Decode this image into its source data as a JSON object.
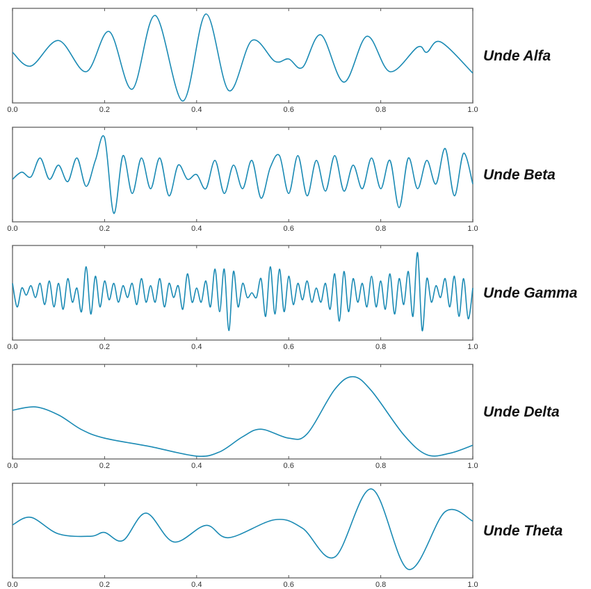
{
  "chart_data": [
    {
      "type": "line",
      "title": "Unde Alfa",
      "color": "#1a8ab4",
      "ylim": [
        -1,
        1
      ],
      "xlim": [
        0,
        1
      ],
      "xticks": [
        {
          "value": 0,
          "label": "0.0"
        },
        0.2,
        0.4,
        0.6,
        0.8,
        {
          "value": 1,
          "label": "1.0"
        }
      ],
      "x": [
        0,
        0.04,
        0.1,
        0.16,
        0.21,
        0.26,
        0.31,
        0.37,
        0.42,
        0.47,
        0.52,
        0.57,
        0.6,
        0.63,
        0.67,
        0.72,
        0.77,
        0.82,
        0.88,
        0.9,
        0.93,
        1.0
      ],
      "values": [
        0.07,
        -0.22,
        0.32,
        -0.34,
        0.51,
        -0.71,
        0.85,
        -0.96,
        0.88,
        -0.74,
        0.32,
        -0.12,
        -0.07,
        -0.25,
        0.44,
        -0.56,
        0.41,
        -0.34,
        0.18,
        0.07,
        0.29,
        -0.37
      ]
    },
    {
      "type": "line",
      "title": "Unde Beta",
      "color": "#1a8ab4",
      "ylim": [
        -1,
        1
      ],
      "xlim": [
        0,
        1
      ],
      "xticks": [
        {
          "value": 0,
          "label": "0.0"
        },
        0.2,
        0.4,
        0.6,
        0.8,
        {
          "value": 1,
          "label": "1.0"
        }
      ],
      "x": [
        0,
        0.02,
        0.04,
        0.06,
        0.08,
        0.1,
        0.12,
        0.14,
        0.16,
        0.18,
        0.2,
        0.22,
        0.24,
        0.26,
        0.28,
        0.3,
        0.32,
        0.34,
        0.36,
        0.38,
        0.4,
        0.42,
        0.44,
        0.46,
        0.48,
        0.5,
        0.52,
        0.54,
        0.56,
        0.58,
        0.6,
        0.62,
        0.64,
        0.66,
        0.68,
        0.7,
        0.72,
        0.74,
        0.76,
        0.78,
        0.8,
        0.82,
        0.84,
        0.86,
        0.88,
        0.9,
        0.92,
        0.94,
        0.96,
        0.98,
        1.0
      ],
      "values": [
        -0.1,
        0.05,
        -0.05,
        0.35,
        -0.1,
        0.2,
        -0.15,
        0.35,
        -0.25,
        0.3,
        0.78,
        -0.82,
        0.4,
        -0.4,
        0.35,
        -0.3,
        0.35,
        -0.45,
        0.2,
        -0.1,
        0.0,
        -0.3,
        0.3,
        -0.4,
        0.2,
        -0.3,
        0.3,
        -0.5,
        0.15,
        0.4,
        -0.4,
        0.4,
        -0.45,
        0.3,
        -0.35,
        0.4,
        -0.35,
        0.2,
        -0.3,
        0.35,
        -0.3,
        0.3,
        -0.7,
        0.35,
        -0.3,
        0.3,
        -0.2,
        0.55,
        -0.45,
        0.45,
        -0.2
      ]
    },
    {
      "type": "line",
      "title": "Unde Gamma",
      "color": "#1a8ab4",
      "ylim": [
        -1,
        1
      ],
      "xlim": [
        0,
        1
      ],
      "xticks": [
        {
          "value": 0,
          "label": "0.0"
        },
        0.2,
        0.4,
        0.6,
        0.8,
        {
          "value": 1,
          "label": "1.0"
        }
      ],
      "x": [
        0,
        0.01,
        0.02,
        0.03,
        0.04,
        0.05,
        0.06,
        0.07,
        0.08,
        0.09,
        0.1,
        0.11,
        0.12,
        0.13,
        0.14,
        0.15,
        0.16,
        0.17,
        0.18,
        0.19,
        0.2,
        0.21,
        0.22,
        0.23,
        0.24,
        0.25,
        0.26,
        0.27,
        0.28,
        0.29,
        0.3,
        0.31,
        0.32,
        0.33,
        0.34,
        0.35,
        0.36,
        0.37,
        0.38,
        0.39,
        0.4,
        0.41,
        0.42,
        0.43,
        0.44,
        0.45,
        0.46,
        0.47,
        0.48,
        0.49,
        0.5,
        0.51,
        0.52,
        0.53,
        0.54,
        0.55,
        0.56,
        0.57,
        0.58,
        0.59,
        0.6,
        0.61,
        0.62,
        0.63,
        0.64,
        0.65,
        0.66,
        0.67,
        0.68,
        0.69,
        0.7,
        0.71,
        0.72,
        0.73,
        0.74,
        0.75,
        0.76,
        0.77,
        0.78,
        0.79,
        0.8,
        0.81,
        0.82,
        0.83,
        0.84,
        0.85,
        0.86,
        0.87,
        0.88,
        0.89,
        0.9,
        0.91,
        0.92,
        0.93,
        0.94,
        0.95,
        0.96,
        0.97,
        0.98,
        0.99,
        1.0
      ],
      "values": [
        0.2,
        -0.3,
        0.1,
        -0.05,
        0.15,
        -0.1,
        0.2,
        -0.25,
        0.25,
        -0.3,
        0.2,
        -0.35,
        0.3,
        -0.2,
        0.1,
        -0.4,
        0.55,
        -0.45,
        0.35,
        -0.3,
        0.25,
        -0.15,
        0.2,
        -0.2,
        0.15,
        -0.1,
        0.2,
        -0.25,
        0.3,
        -0.2,
        0.15,
        -0.2,
        0.3,
        -0.3,
        0.2,
        -0.1,
        0.15,
        -0.35,
        0.4,
        -0.2,
        0.1,
        -0.2,
        0.25,
        -0.3,
        0.5,
        -0.4,
        0.5,
        -0.8,
        0.45,
        -0.3,
        0.2,
        -0.1,
        0.0,
        -0.1,
        0.3,
        -0.5,
        0.55,
        -0.45,
        0.5,
        -0.4,
        0.35,
        -0.25,
        0.2,
        -0.15,
        0.25,
        -0.2,
        0.1,
        -0.2,
        0.2,
        -0.35,
        0.4,
        -0.6,
        0.45,
        -0.4,
        0.3,
        -0.2,
        0.2,
        -0.3,
        0.35,
        -0.3,
        0.25,
        -0.35,
        0.4,
        -0.45,
        0.3,
        -0.25,
        0.45,
        -0.5,
        0.85,
        -0.8,
        0.3,
        -0.2,
        0.15,
        -0.1,
        0.3,
        -0.3,
        0.35,
        -0.5,
        0.3,
        -0.55,
        0.1
      ]
    },
    {
      "type": "line",
      "title": "Unde Delta",
      "color": "#1a8ab4",
      "ylim": [
        -1,
        1
      ],
      "xlim": [
        0,
        1
      ],
      "xticks": [
        {
          "value": 0,
          "label": "0.0"
        },
        0.2,
        0.4,
        0.6,
        0.8,
        {
          "value": 1,
          "label": "1.0"
        }
      ],
      "x": [
        0,
        0.05,
        0.1,
        0.15,
        0.2,
        0.3,
        0.4,
        0.45,
        0.5,
        0.54,
        0.6,
        0.64,
        0.7,
        0.74,
        0.78,
        0.85,
        0.9,
        0.95,
        1.0
      ],
      "values": [
        0.03,
        0.1,
        -0.07,
        -0.38,
        -0.56,
        -0.74,
        -0.94,
        -0.85,
        -0.53,
        -0.37,
        -0.56,
        -0.47,
        0.47,
        0.74,
        0.44,
        -0.49,
        -0.91,
        -0.88,
        -0.71
      ]
    },
    {
      "type": "line",
      "title": "Unde Theta",
      "color": "#1a8ab4",
      "ylim": [
        -1,
        1
      ],
      "xlim": [
        0,
        1
      ],
      "xticks": [
        {
          "value": 0,
          "label": "0.0"
        },
        0.2,
        0.4,
        0.6,
        0.8,
        {
          "value": 1,
          "label": "1.0"
        }
      ],
      "x": [
        0,
        0.04,
        0.1,
        0.17,
        0.2,
        0.24,
        0.29,
        0.35,
        0.42,
        0.47,
        0.57,
        0.63,
        0.7,
        0.78,
        0.86,
        0.94,
        1.0
      ],
      "values": [
        0.12,
        0.28,
        -0.07,
        -0.12,
        -0.04,
        -0.21,
        0.37,
        -0.24,
        0.11,
        -0.15,
        0.23,
        0.05,
        -0.56,
        0.88,
        -0.82,
        0.4,
        0.2
      ]
    }
  ]
}
